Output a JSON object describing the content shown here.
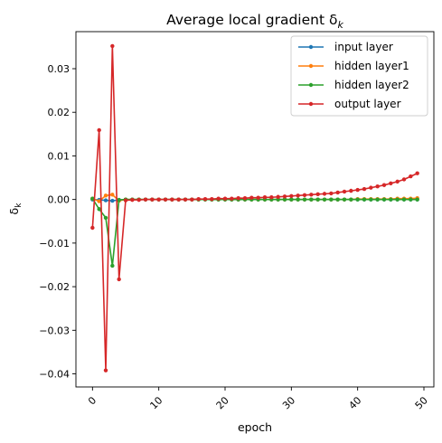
{
  "chart_data": {
    "type": "line",
    "title": "Average local gradient δ",
    "title_subscript": "k",
    "xlabel": "epoch",
    "ylabel": "δ",
    "ylabel_subscript": "k",
    "xlim": [
      -2.5,
      51.5
    ],
    "ylim": [
      -0.043,
      0.0385
    ],
    "x_ticks": [
      0,
      10,
      20,
      30,
      40,
      50
    ],
    "x_tick_labels": [
      "0",
      "10",
      "20",
      "30",
      "40",
      "50"
    ],
    "y_ticks": [
      0.03,
      0.02,
      0.01,
      0.0,
      -0.01,
      -0.02,
      -0.03,
      -0.04
    ],
    "y_tick_labels": [
      "0.03",
      "0.02",
      "0.01",
      "0.00",
      "−0.01",
      "−0.02",
      "−0.03",
      "−0.04"
    ],
    "grid": false,
    "legend_position": "top-right",
    "x": [
      0,
      1,
      2,
      3,
      4,
      5,
      6,
      7,
      8,
      9,
      10,
      11,
      12,
      13,
      14,
      15,
      16,
      17,
      18,
      19,
      20,
      21,
      22,
      23,
      24,
      25,
      26,
      27,
      28,
      29,
      30,
      31,
      32,
      33,
      34,
      35,
      36,
      37,
      38,
      39,
      40,
      41,
      42,
      43,
      44,
      45,
      46,
      47,
      48,
      49
    ],
    "series": [
      {
        "name": "input layer",
        "color": "#1f77b4",
        "values": [
          0.0,
          -0.0001,
          -0.0002,
          -0.0003,
          -0.0001,
          0,
          0,
          0,
          0,
          0,
          0,
          0,
          0,
          0,
          0,
          0,
          0,
          0,
          0,
          0,
          0,
          0,
          0,
          0,
          0,
          0,
          0,
          0,
          0,
          0,
          0,
          0,
          0,
          0,
          0,
          0,
          0,
          0,
          0,
          0,
          0,
          0,
          0,
          0,
          0,
          0,
          0,
          0,
          0,
          0
        ]
      },
      {
        "name": "hidden layer1",
        "color": "#ff7f0e",
        "values": [
          0.0002,
          -0.0004,
          0.0009,
          0.0011,
          -0.0003,
          0.0,
          0.0,
          0.0,
          0.0,
          0.0,
          0.0,
          0.0,
          0.0,
          0.0,
          0.0,
          0.0,
          0.0,
          0.0,
          0.0,
          0.0,
          0.0,
          0.0,
          0.0,
          0.0,
          0.0,
          0.0,
          0.0,
          0.0,
          0.0,
          0.0,
          0.0,
          0.0,
          0.0,
          0.0,
          0.0,
          0.0,
          0.0,
          0.0,
          0.0,
          0.0,
          0.0001,
          0.0001,
          0.0001,
          0.0001,
          0.0001,
          0.0001,
          0.0002,
          0.0002,
          0.0002,
          0.0003
        ]
      },
      {
        "name": "hidden layer2",
        "color": "#2ca02c",
        "values": [
          0.0002,
          -0.0022,
          -0.0042,
          -0.0152,
          -0.0001,
          0.0,
          0.0,
          0.0,
          0.0,
          0.0,
          0.0,
          0.0,
          0.0,
          0.0,
          0.0,
          0.0,
          0.0,
          0.0,
          0.0,
          0.0,
          0.0,
          0.0,
          0.0,
          0.0,
          0.0,
          0.0,
          0.0,
          0.0,
          0.0,
          0.0,
          0.0,
          0.0,
          0.0,
          0.0,
          0.0,
          0.0,
          0.0,
          0.0,
          0.0,
          0.0,
          0.0,
          0.0,
          0.0,
          0.0,
          0.0,
          0.0,
          0.0,
          0.0,
          0.0,
          0.0
        ]
      },
      {
        "name": "output layer",
        "color": "#d62728",
        "values": [
          -0.0065,
          0.0159,
          -0.0392,
          0.0352,
          -0.0183,
          -0.0002,
          -0.0001,
          -0.0001,
          0.0,
          0.0,
          0.0,
          0.0,
          0.0,
          0.0,
          0.0,
          0.0,
          0.0001,
          0.0001,
          0.0001,
          0.0002,
          0.0002,
          0.0002,
          0.0003,
          0.0003,
          0.0004,
          0.0004,
          0.0005,
          0.0005,
          0.0006,
          0.0007,
          0.0008,
          0.0009,
          0.001,
          0.0011,
          0.0012,
          0.0013,
          0.0014,
          0.0016,
          0.0018,
          0.002,
          0.0022,
          0.0024,
          0.0027,
          0.003,
          0.0033,
          0.0037,
          0.0041,
          0.0046,
          0.0053,
          0.006
        ]
      }
    ]
  }
}
